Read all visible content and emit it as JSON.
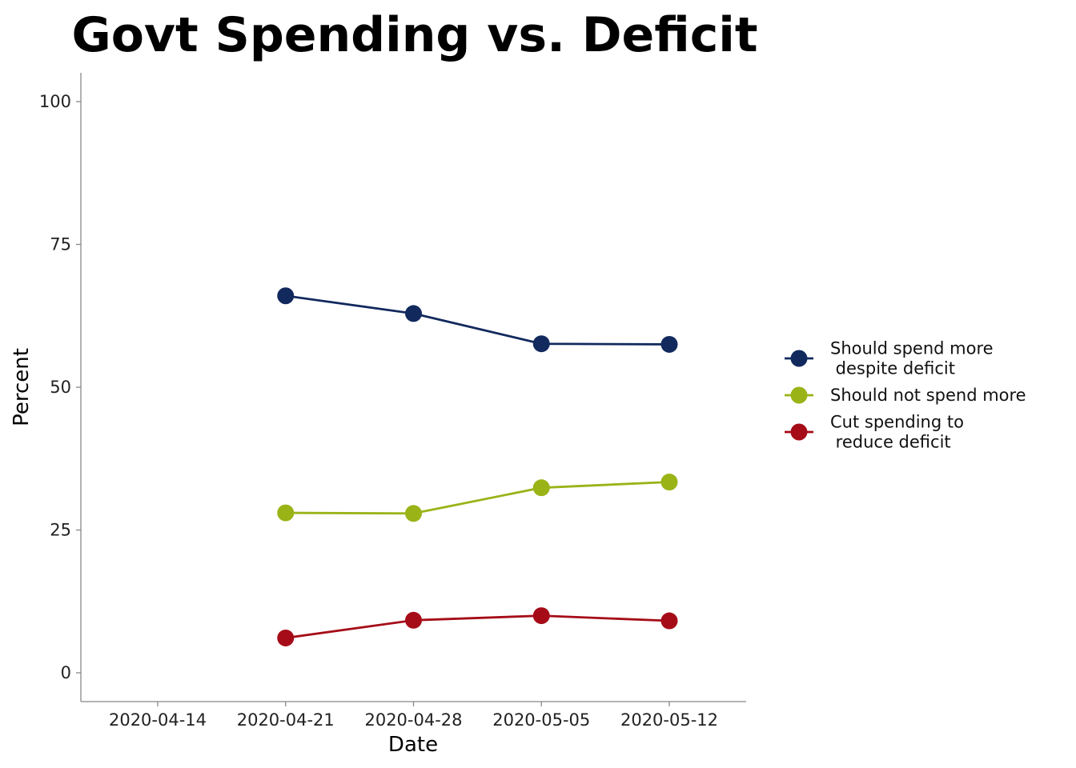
{
  "chart_data": {
    "type": "line",
    "title": "Govt Spending vs. Deficit",
    "xlabel": "Date",
    "ylabel": "Percent",
    "x_ticks": [
      "2020-04-14",
      "2020-04-21",
      "2020-04-28",
      "2020-05-05",
      "2020-05-12"
    ],
    "x": [
      "2020-04-21",
      "2020-04-28",
      "2020-05-05",
      "2020-05-12"
    ],
    "y_ticks": [
      0,
      25,
      50,
      75,
      100
    ],
    "ylim": [
      -5,
      105
    ],
    "grid": false,
    "legend_position": "right",
    "series": [
      {
        "name": "Should spend more\n despite deficit",
        "color": "#12295e",
        "values": [
          66,
          62.9,
          57.6,
          57.5
        ]
      },
      {
        "name": "Should not spend more",
        "color": "#9ab317",
        "values": [
          28,
          27.9,
          32.4,
          33.4
        ]
      },
      {
        "name": "Cut spending to\n reduce deficit",
        "color": "#a50c18",
        "values": [
          6.1,
          9.2,
          10,
          9.1
        ]
      }
    ]
  }
}
